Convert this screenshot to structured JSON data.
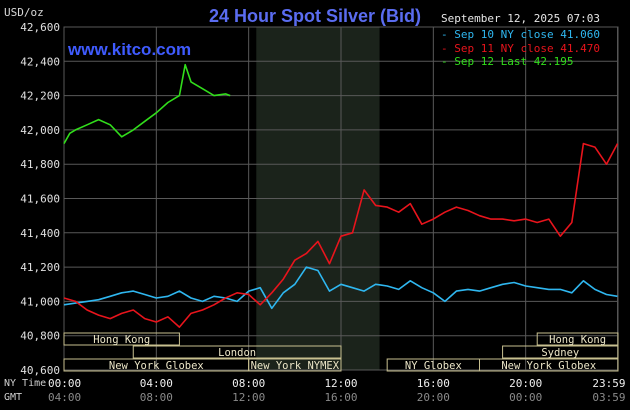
{
  "header": {
    "title": "24 Hour Spot Silver (Bid)",
    "unit_label": "USD/oz",
    "watermark": "www.kitco.com",
    "timestamp": "September 12, 2025 07:03"
  },
  "time_labels": {
    "row1_name": "NY Time",
    "row2_name": "GMT",
    "ny": [
      "00:00",
      "04:00",
      "08:00",
      "12:00",
      "16:00",
      "20:00",
      "23:59"
    ],
    "gmt": [
      "04:00",
      "08:00",
      "12:00",
      "16:00",
      "20:00",
      "00:00",
      "03:59"
    ]
  },
  "sessions": {
    "row1": [
      {
        "name": "Hong Kong",
        "start": 0,
        "end": 5.0
      },
      {
        "name": "Hong Kong",
        "start": 20.5,
        "end": 24
      }
    ],
    "row2": [
      {
        "name": "London",
        "start": 3.0,
        "end": 12.0
      },
      {
        "name": "Sydney",
        "start": 19.0,
        "end": 24
      }
    ],
    "row3": [
      {
        "name": "New York Globex",
        "start": 0,
        "end": 8.0
      },
      {
        "name": "New York NYMEX",
        "start": 8.0,
        "end": 12.0
      },
      {
        "name": "NY Globex",
        "start": 14.0,
        "end": 18.0
      },
      {
        "name": "New York Globex",
        "start": 18.0,
        "end": 24
      }
    ]
  },
  "colors": {
    "background": "#000000",
    "grid": "#595959",
    "title": "#5a6cf0",
    "highlight": "#1b231b",
    "sep10": "#2fb7f0",
    "sep11": "#e8141c",
    "sep12": "#31dd1b",
    "session_box": "#c8c090"
  },
  "chart_data": {
    "type": "line",
    "title": "24 Hour Spot Silver (Bid)",
    "ylabel": "USD/oz",
    "xlabel": "NY Time",
    "xlim": [
      0,
      24
    ],
    "ylim": [
      40.6,
      42.6
    ],
    "yticks": [
      40.6,
      40.8,
      41.0,
      41.2,
      41.4,
      41.6,
      41.8,
      42.0,
      42.2,
      42.4,
      42.6
    ],
    "ytick_labels": [
      "40,600",
      "40,800",
      "41,000",
      "41,200",
      "41,400",
      "41,600",
      "41,800",
      "42,000",
      "42,200",
      "42,400",
      "42,600"
    ],
    "xticks": [
      0,
      4,
      8,
      12,
      16,
      20,
      23.98
    ],
    "highlight_band": [
      8.33,
      13.67
    ],
    "grid": true,
    "legend_position": "top-right",
    "series": [
      {
        "name": "Sep 10 NY close 41.060",
        "color_key": "sep10",
        "x": [
          0,
          0.5,
          1.0,
          1.5,
          2.0,
          2.5,
          3.0,
          3.5,
          4.0,
          4.5,
          5.0,
          5.5,
          6.0,
          6.5,
          7.0,
          7.5,
          8.0,
          8.5,
          9.0,
          9.5,
          10.0,
          10.5,
          11.0,
          11.5,
          12.0,
          12.5,
          13.0,
          13.5,
          14.0,
          14.5,
          15.0,
          15.5,
          16.0,
          16.5,
          17.0,
          17.5,
          18.0,
          18.5,
          19.0,
          19.5,
          20.0,
          20.5,
          21.0,
          21.5,
          22.0,
          22.5,
          23.0,
          23.5,
          23.98
        ],
        "values": [
          40.98,
          40.99,
          41.0,
          41.01,
          41.03,
          41.05,
          41.06,
          41.04,
          41.02,
          41.03,
          41.06,
          41.02,
          41.0,
          41.03,
          41.02,
          41.0,
          41.06,
          41.08,
          40.96,
          41.05,
          41.1,
          41.2,
          41.18,
          41.06,
          41.1,
          41.08,
          41.06,
          41.1,
          41.09,
          41.07,
          41.12,
          41.08,
          41.05,
          41.0,
          41.06,
          41.07,
          41.06,
          41.08,
          41.1,
          41.11,
          41.09,
          41.08,
          41.07,
          41.07,
          41.05,
          41.12,
          41.07,
          41.04,
          41.03
        ]
      },
      {
        "name": "Sep 11 NY close 41.470",
        "color_key": "sep11",
        "x": [
          0,
          0.5,
          1.0,
          1.5,
          2.0,
          2.5,
          3.0,
          3.5,
          4.0,
          4.5,
          5.0,
          5.5,
          6.0,
          6.5,
          7.0,
          7.5,
          8.0,
          8.5,
          9.0,
          9.5,
          10.0,
          10.5,
          11.0,
          11.5,
          12.0,
          12.5,
          13.0,
          13.5,
          14.0,
          14.5,
          15.0,
          15.5,
          16.0,
          16.5,
          17.0,
          17.5,
          18.0,
          18.5,
          19.0,
          19.5,
          20.0,
          20.5,
          21.0,
          21.5,
          22.0,
          22.5,
          23.0,
          23.5,
          23.98
        ],
        "values": [
          41.02,
          41.0,
          40.95,
          40.92,
          40.9,
          40.93,
          40.95,
          40.9,
          40.88,
          40.91,
          40.85,
          40.93,
          40.95,
          40.98,
          41.02,
          41.05,
          41.04,
          40.98,
          41.05,
          41.13,
          41.24,
          41.28,
          41.35,
          41.22,
          41.38,
          41.4,
          41.65,
          41.56,
          41.55,
          41.52,
          41.57,
          41.45,
          41.48,
          41.52,
          41.55,
          41.53,
          41.5,
          41.48,
          41.48,
          41.47,
          41.48,
          41.46,
          41.48,
          41.38,
          41.46,
          41.92,
          41.9,
          41.8,
          41.92
        ]
      },
      {
        "name": "Sep 12 Last 42.195",
        "color_key": "sep12",
        "x": [
          0,
          0.25,
          0.5,
          1.0,
          1.5,
          2.0,
          2.5,
          3.0,
          3.5,
          4.0,
          4.5,
          5.0,
          5.25,
          5.5,
          6.0,
          6.5,
          7.0,
          7.2
        ],
        "values": [
          41.92,
          41.98,
          42.0,
          42.03,
          42.06,
          42.03,
          41.96,
          42.0,
          42.05,
          42.1,
          42.16,
          42.2,
          42.38,
          42.28,
          42.24,
          42.2,
          42.21,
          42.2
        ]
      }
    ]
  }
}
